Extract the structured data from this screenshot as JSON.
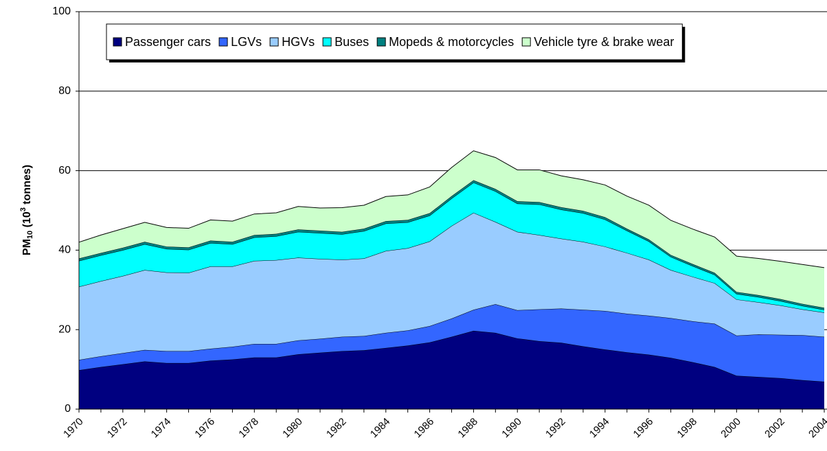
{
  "chart_data": {
    "type": "stacked-area",
    "y_label": {
      "base": "PM",
      "sub": "10",
      "mid": " (10",
      "sup": "3",
      "end": " tonnes)"
    },
    "x": [
      1970,
      1971,
      1972,
      1973,
      1974,
      1975,
      1976,
      1977,
      1978,
      1979,
      1980,
      1981,
      1982,
      1983,
      1984,
      1985,
      1986,
      1987,
      1988,
      1989,
      1990,
      1991,
      1992,
      1993,
      1994,
      1995,
      1996,
      1997,
      1998,
      1999,
      2000,
      2001,
      2002,
      2003,
      2004
    ],
    "xlim": [
      1970,
      2004
    ],
    "xticks": [
      1970,
      1972,
      1974,
      1976,
      1978,
      1980,
      1982,
      1984,
      1986,
      1988,
      1990,
      1992,
      1994,
      1996,
      1998,
      2000,
      2002,
      2004
    ],
    "ylim": [
      0,
      100
    ],
    "yticks": [
      0,
      20,
      40,
      60,
      80,
      100
    ],
    "grid": true,
    "legend": "top",
    "series": [
      {
        "name": "Passenger cars",
        "color": "#000080",
        "values": [
          9.8,
          10.6,
          11.3,
          12.0,
          11.6,
          11.6,
          12.2,
          12.5,
          13.0,
          13.0,
          13.8,
          14.2,
          14.6,
          14.8,
          15.4,
          16.0,
          16.8,
          18.2,
          19.7,
          19.2,
          17.8,
          17.1,
          16.7,
          15.8,
          15.0,
          14.3,
          13.7,
          12.9,
          11.8,
          10.6,
          8.4,
          8.1,
          7.8,
          7.3,
          6.9
        ]
      },
      {
        "name": "LGVs",
        "color": "#3366ff",
        "values": [
          2.6,
          2.7,
          2.8,
          2.9,
          3.0,
          3.0,
          3.0,
          3.2,
          3.4,
          3.4,
          3.5,
          3.5,
          3.6,
          3.6,
          3.8,
          3.8,
          4.1,
          4.6,
          5.3,
          7.2,
          7.1,
          8.0,
          8.6,
          9.2,
          9.7,
          9.7,
          9.8,
          10.0,
          10.3,
          10.9,
          10.1,
          10.7,
          10.9,
          11.3,
          11.3
        ]
      },
      {
        "name": "HGVs",
        "color": "#99ccff",
        "values": [
          18.4,
          18.9,
          19.4,
          20.1,
          19.8,
          19.7,
          20.7,
          20.2,
          20.9,
          21.1,
          20.8,
          20.1,
          19.4,
          19.5,
          20.6,
          20.7,
          21.3,
          23.3,
          24.4,
          20.7,
          19.7,
          18.7,
          17.6,
          17.1,
          16.2,
          15.3,
          14.1,
          12.1,
          11.2,
          10.2,
          9.1,
          8.1,
          7.4,
          6.5,
          6.1
        ]
      },
      {
        "name": "Buses",
        "color": "#00ffff",
        "values": [
          6.5,
          6.5,
          6.5,
          6.5,
          5.9,
          5.8,
          5.9,
          5.6,
          5.9,
          6.0,
          6.5,
          6.5,
          6.4,
          6.9,
          6.9,
          6.5,
          6.5,
          6.9,
          7.6,
          7.7,
          7.1,
          7.7,
          7.3,
          7.2,
          6.8,
          5.6,
          4.6,
          3.3,
          2.7,
          2.1,
          1.4,
          1.3,
          1.1,
          0.9,
          0.7
        ]
      },
      {
        "name": "Mopeds & motorcycles",
        "color": "#008080",
        "values": [
          0.6,
          0.6,
          0.6,
          0.6,
          0.6,
          0.6,
          0.6,
          0.6,
          0.6,
          0.6,
          0.6,
          0.6,
          0.6,
          0.6,
          0.6,
          0.6,
          0.6,
          0.6,
          0.6,
          0.6,
          0.6,
          0.6,
          0.6,
          0.6,
          0.6,
          0.5,
          0.5,
          0.5,
          0.5,
          0.5,
          0.5,
          0.5,
          0.5,
          0.5,
          0.5
        ]
      },
      {
        "name": "Vehicle tyre & brake wear",
        "color": "#ccffcc",
        "values": [
          4.1,
          4.5,
          4.8,
          4.9,
          4.8,
          4.8,
          5.2,
          5.2,
          5.3,
          5.3,
          5.8,
          5.7,
          6.1,
          5.9,
          6.2,
          6.3,
          6.6,
          7.2,
          7.4,
          7.9,
          7.9,
          8.1,
          7.9,
          7.8,
          8.1,
          8.2,
          8.6,
          8.7,
          8.8,
          9.0,
          9.0,
          9.2,
          9.5,
          9.9,
          10.1
        ]
      }
    ]
  }
}
